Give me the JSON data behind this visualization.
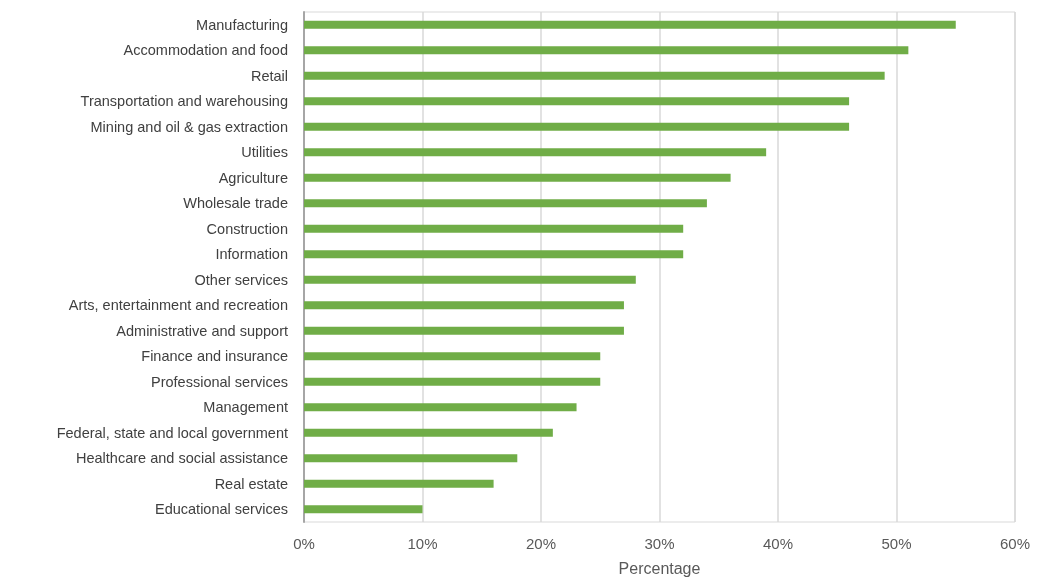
{
  "chart_data": {
    "type": "bar",
    "orientation": "horizontal",
    "xlabel": "Percentage",
    "categories": [
      "Manufacturing",
      "Accommodation and food",
      "Retail",
      "Transportation and warehousing",
      "Mining and oil & gas extraction",
      "Utilities",
      "Agriculture",
      "Wholesale trade",
      "Construction",
      "Information",
      "Other services",
      "Arts, entertainment and recreation",
      "Administrative and support",
      "Finance and insurance",
      "Professional services",
      "Management",
      "Federal, state and local government",
      "Healthcare and social assistance",
      "Real estate",
      "Educational services"
    ],
    "values": [
      55,
      51,
      49,
      46,
      46,
      39,
      36,
      34,
      32,
      32,
      28,
      27,
      27,
      25,
      25,
      23,
      21,
      18,
      16,
      10
    ],
    "color": "#70ad47",
    "xlim": [
      0,
      60
    ],
    "xticks": [
      {
        "value": 0,
        "label": "0%"
      },
      {
        "value": 10,
        "label": "10%"
      },
      {
        "value": 20,
        "label": "20%"
      },
      {
        "value": 30,
        "label": "30%"
      },
      {
        "value": 40,
        "label": "40%"
      },
      {
        "value": 50,
        "label": "50%"
      },
      {
        "value": 60,
        "label": "60%"
      }
    ],
    "grid": "x"
  }
}
